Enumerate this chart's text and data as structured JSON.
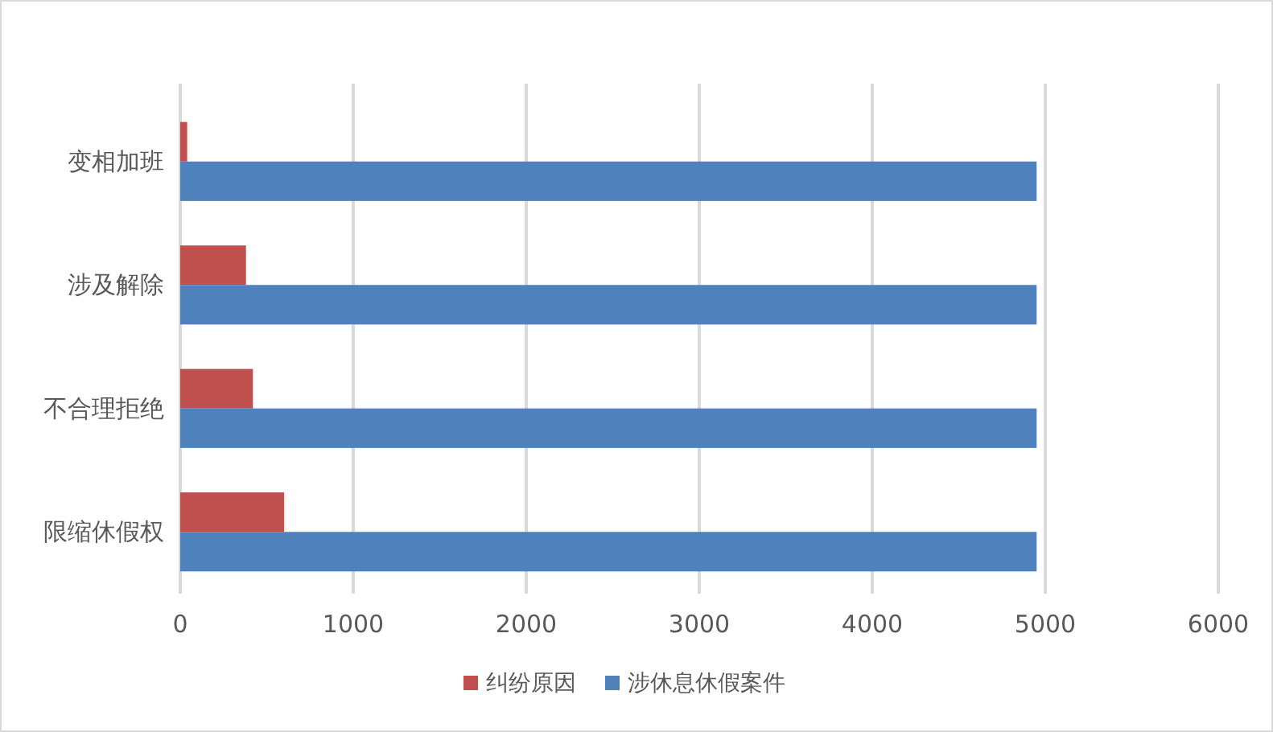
{
  "chart_data": {
    "type": "bar",
    "orientation": "horizontal",
    "categories": [
      "变相加班",
      "涉及解除",
      "不合理拒绝",
      "限缩休假权"
    ],
    "series": [
      {
        "name": "纠纷原因",
        "color": "#c0504d",
        "values": [
          40,
          380,
          420,
          600
        ]
      },
      {
        "name": "涉休息休假案件",
        "color": "#4f81bd",
        "values": [
          4950,
          4950,
          4950,
          4950
        ]
      }
    ],
    "xlim": [
      0,
      6000
    ],
    "xticks": [
      0,
      1000,
      2000,
      3000,
      4000,
      5000,
      6000
    ],
    "grid": "x",
    "legend": "bottom"
  }
}
